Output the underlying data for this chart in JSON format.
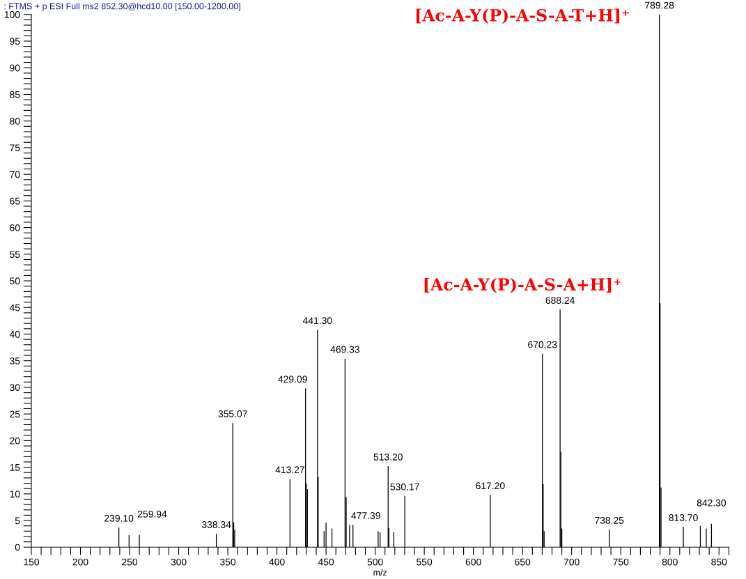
{
  "chart_data": {
    "type": "bar",
    "title": ": FTMS + p ESI Full ms2 852.30@hcd10.00 [150.00-1200.00]",
    "xlabel": "m/z",
    "x": [
      239.1,
      249.5,
      259.94,
      338.34,
      355.07,
      356.0,
      357.0,
      413.27,
      429.09,
      430.0,
      431.0,
      441.3,
      442.0,
      448.0,
      450.0,
      456.0,
      469.33,
      470.5,
      474.0,
      477.39,
      503.0,
      505.0,
      513.2,
      514.0,
      519.0,
      530.17,
      617.2,
      670.23,
      671.0,
      672.0,
      688.24,
      689.0,
      690.0,
      738.25,
      789.28,
      790.0,
      791.0,
      813.7,
      831.0,
      837.0,
      842.3
    ],
    "values": [
      3.7,
      2.3,
      2.3,
      2.5,
      23.3,
      4.7,
      3.3,
      12.8,
      29.8,
      11.9,
      10.9,
      40.8,
      13.2,
      3.0,
      4.6,
      3.5,
      35.4,
      9.4,
      4.2,
      4.2,
      3.0,
      2.8,
      15.2,
      3.6,
      2.8,
      9.6,
      9.8,
      36.3,
      11.8,
      3.0,
      44.6,
      17.9,
      3.5,
      3.3,
      100,
      45.8,
      11.2,
      3.8,
      4.0,
      3.5,
      4.4
    ],
    "color": "#000000",
    "annotations": [
      {
        "text": "239.10",
        "x": 239.1,
        "y": 3.7
      },
      {
        "text": "259.94",
        "x": 259.94,
        "y": 2.3
      },
      {
        "text": "338.34",
        "x": 338.34,
        "y": 2.5
      },
      {
        "text": "355.07",
        "x": 355.07,
        "y": 23.3
      },
      {
        "text": "413.27",
        "x": 413.27,
        "y": 12.8
      },
      {
        "text": "429.09",
        "x": 429.09,
        "y": 29.8
      },
      {
        "text": "441.30",
        "x": 441.3,
        "y": 40.8
      },
      {
        "text": "469.33",
        "x": 469.33,
        "y": 35.4
      },
      {
        "text": "477.39",
        "x": 477.39,
        "y": 4.2
      },
      {
        "text": "513.20",
        "x": 513.2,
        "y": 15.2
      },
      {
        "text": "530.17",
        "x": 530.17,
        "y": 9.6
      },
      {
        "text": "617.20",
        "x": 617.2,
        "y": 9.8
      },
      {
        "text": "670.23",
        "x": 670.23,
        "y": 36.3
      },
      {
        "text": "688.24",
        "x": 688.24,
        "y": 44.6
      },
      {
        "text": "738.25",
        "x": 738.25,
        "y": 3.3
      },
      {
        "text": "789.28",
        "x": 789.28,
        "y": 100
      },
      {
        "text": "813.70",
        "x": 813.7,
        "y": 3.8
      },
      {
        "text": "842.30",
        "x": 842.3,
        "y": 4.4
      },
      "[Ac-A-Y(P)-A-S-A-T+H]⁺",
      "[Ac-A-Y(P)-A-S-A+H]⁺"
    ],
    "xlim": [
      150,
      860
    ],
    "ylim": [
      0,
      100
    ],
    "xticks": [
      150,
      {
        "value": 160,
        "label": null
      },
      {
        "value": 170,
        "label": null
      },
      {
        "value": 180,
        "label": null
      },
      {
        "value": 190,
        "label": null
      },
      200,
      {
        "value": 210,
        "label": null
      },
      {
        "value": 220,
        "label": null
      },
      {
        "value": 230,
        "label": null
      },
      {
        "value": 240,
        "label": null
      },
      250,
      {
        "value": 260,
        "label": null
      },
      {
        "value": 270,
        "label": null
      },
      {
        "value": 280,
        "label": null
      },
      {
        "value": 290,
        "label": null
      },
      300,
      {
        "value": 310,
        "label": null
      },
      {
        "value": 320,
        "label": null
      },
      {
        "value": 330,
        "label": null
      },
      {
        "value": 340,
        "label": null
      },
      350,
      {
        "value": 360,
        "label": null
      },
      {
        "value": 370,
        "label": null
      },
      {
        "value": 380,
        "label": null
      },
      {
        "value": 390,
        "label": null
      },
      400,
      {
        "value": 410,
        "label": null
      },
      {
        "value": 420,
        "label": null
      },
      {
        "value": 430,
        "label": null
      },
      {
        "value": 440,
        "label": null
      },
      450,
      {
        "value": 460,
        "label": null
      },
      {
        "value": 470,
        "label": null
      },
      {
        "value": 480,
        "label": null
      },
      {
        "value": 490,
        "label": null
      },
      500,
      {
        "value": 510,
        "label": null
      },
      {
        "value": 520,
        "label": null
      },
      {
        "value": 530,
        "label": null
      },
      {
        "value": 540,
        "label": null
      },
      550,
      {
        "value": 560,
        "label": null
      },
      {
        "value": 570,
        "label": null
      },
      {
        "value": 580,
        "label": null
      },
      {
        "value": 590,
        "label": null
      },
      600,
      {
        "value": 610,
        "label": null
      },
      {
        "value": 620,
        "label": null
      },
      {
        "value": 630,
        "label": null
      },
      {
        "value": 640,
        "label": null
      },
      650,
      {
        "value": 660,
        "label": null
      },
      {
        "value": 670,
        "label": null
      },
      {
        "value": 680,
        "label": null
      },
      {
        "value": 690,
        "label": null
      },
      700,
      {
        "value": 710,
        "label": null
      },
      {
        "value": 720,
        "label": null
      },
      {
        "value": 730,
        "label": null
      },
      {
        "value": 740,
        "label": null
      },
      750,
      {
        "value": 760,
        "label": null
      },
      {
        "value": 770,
        "label": null
      },
      {
        "value": 780,
        "label": null
      },
      {
        "value": 790,
        "label": null
      },
      800,
      {
        "value": 810,
        "label": null
      },
      {
        "value": 820,
        "label": null
      },
      {
        "value": 830,
        "label": null
      },
      {
        "value": 840,
        "label": null
      },
      850,
      {
        "value": 860,
        "label": null
      }
    ],
    "yticks": [
      0,
      {
        "value": 1,
        "label": null
      },
      {
        "value": 2,
        "label": null
      },
      {
        "value": 3,
        "label": null
      },
      {
        "value": 4,
        "label": null
      },
      5,
      {
        "value": 6,
        "label": null
      },
      {
        "value": 7,
        "label": null
      },
      {
        "value": 8,
        "label": null
      },
      {
        "value": 9,
        "label": null
      },
      10,
      {
        "value": 11,
        "label": null
      },
      {
        "value": 12,
        "label": null
      },
      {
        "value": 13,
        "label": null
      },
      {
        "value": 14,
        "label": null
      },
      15,
      {
        "value": 16,
        "label": null
      },
      {
        "value": 17,
        "label": null
      },
      {
        "value": 18,
        "label": null
      },
      {
        "value": 19,
        "label": null
      },
      20,
      {
        "value": 21,
        "label": null
      },
      {
        "value": 22,
        "label": null
      },
      {
        "value": 23,
        "label": null
      },
      {
        "value": 24,
        "label": null
      },
      25,
      {
        "value": 26,
        "label": null
      },
      {
        "value": 27,
        "label": null
      },
      {
        "value": 28,
        "label": null
      },
      {
        "value": 29,
        "label": null
      },
      30,
      {
        "value": 31,
        "label": null
      },
      {
        "value": 32,
        "label": null
      },
      {
        "value": 33,
        "label": null
      },
      {
        "value": 34,
        "label": null
      },
      35,
      {
        "value": 36,
        "label": null
      },
      {
        "value": 37,
        "label": null
      },
      {
        "value": 38,
        "label": null
      },
      {
        "value": 39,
        "label": null
      },
      40,
      {
        "value": 41,
        "label": null
      },
      {
        "value": 42,
        "label": null
      },
      {
        "value": 43,
        "label": null
      },
      {
        "value": 44,
        "label": null
      },
      45,
      {
        "value": 46,
        "label": null
      },
      {
        "value": 47,
        "label": null
      },
      {
        "value": 48,
        "label": null
      },
      {
        "value": 49,
        "label": null
      },
      50,
      {
        "value": 51,
        "label": null
      },
      {
        "value": 52,
        "label": null
      },
      {
        "value": 53,
        "label": null
      },
      {
        "value": 54,
        "label": null
      },
      55,
      {
        "value": 56,
        "label": null
      },
      {
        "value": 57,
        "label": null
      },
      {
        "value": 58,
        "label": null
      },
      {
        "value": 59,
        "label": null
      },
      60,
      {
        "value": 61,
        "label": null
      },
      {
        "value": 62,
        "label": null
      },
      {
        "value": 63,
        "label": null
      },
      {
        "value": 64,
        "label": null
      },
      65,
      {
        "value": 66,
        "label": null
      },
      {
        "value": 67,
        "label": null
      },
      {
        "value": 68,
        "label": null
      },
      {
        "value": 69,
        "label": null
      },
      70,
      {
        "value": 71,
        "label": null
      },
      {
        "value": 72,
        "label": null
      },
      {
        "value": 73,
        "label": null
      },
      {
        "value": 74,
        "label": null
      },
      75,
      {
        "value": 76,
        "label": null
      },
      {
        "value": 77,
        "label": null
      },
      {
        "value": 78,
        "label": null
      },
      {
        "value": 79,
        "label": null
      },
      80,
      {
        "value": 81,
        "label": null
      },
      {
        "value": 82,
        "label": null
      },
      {
        "value": 83,
        "label": null
      },
      {
        "value": 84,
        "label": null
      },
      85,
      {
        "value": 86,
        "label": null
      },
      {
        "value": 87,
        "label": null
      },
      {
        "value": 88,
        "label": null
      },
      {
        "value": 89,
        "label": null
      },
      90,
      {
        "value": 91,
        "label": null
      },
      {
        "value": 92,
        "label": null
      },
      {
        "value": 93,
        "label": null
      },
      {
        "value": 94,
        "label": null
      },
      95,
      {
        "value": 96,
        "label": null
      },
      {
        "value": 97,
        "label": null
      },
      {
        "value": 98,
        "label": null
      },
      {
        "value": 99,
        "label": null
      },
      100
    ],
    "grid": false
  }
}
